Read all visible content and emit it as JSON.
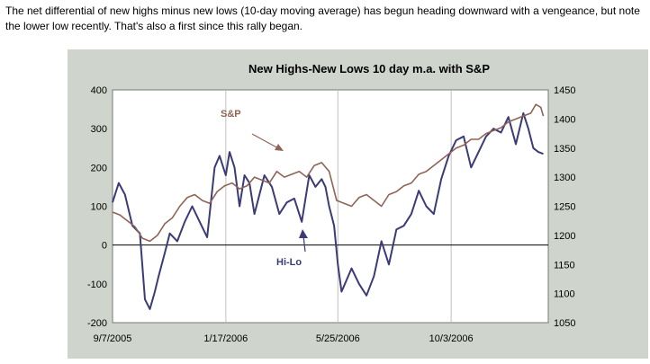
{
  "caption": "The net differential of new highs minus new lows (10-day moving average) has begun heading downward with a vengeance, but note the lower low recently. That's also a first since this rally began.",
  "chart_data": {
    "type": "line",
    "title": "New Highs-New Lows 10 day m.a.  with S&P",
    "x_tick_labels": [
      "9/7/2005",
      "1/17/2006",
      "5/25/2006",
      "10/3/2006"
    ],
    "x_tick_index": [
      0,
      91,
      181,
      272
    ],
    "x_range": [
      0,
      350
    ],
    "y_left": {
      "range": [
        -200,
        400
      ],
      "ticks": [
        -200,
        -100,
        0,
        100,
        200,
        300,
        400
      ]
    },
    "y_right": {
      "range": [
        1050,
        1450
      ],
      "ticks": [
        1050,
        1100,
        1150,
        1200,
        1250,
        1300,
        1350,
        1400,
        1450
      ]
    },
    "annotations": [
      {
        "text": "S&P",
        "series": "S&P"
      },
      {
        "text": "Hi-Lo",
        "series": "Hi-Lo"
      }
    ],
    "series": [
      {
        "name": "Hi-Lo",
        "axis": "left",
        "color": "#3b3b78",
        "x": [
          0,
          5,
          10,
          16,
          22,
          26,
          30,
          34,
          37,
          42,
          46,
          52,
          58,
          64,
          70,
          76,
          82,
          86,
          91,
          94,
          98,
          102,
          106,
          110,
          114,
          118,
          122,
          128,
          134,
          140,
          146,
          152,
          158,
          163,
          168,
          171,
          174,
          178,
          181,
          184,
          188,
          192,
          198,
          204,
          210,
          216,
          222,
          228,
          234,
          240,
          246,
          252,
          258,
          264,
          270,
          276,
          282,
          288,
          294,
          300,
          306,
          312,
          318,
          324,
          330,
          334,
          338,
          342,
          346
        ],
        "values": [
          110,
          160,
          130,
          50,
          30,
          -140,
          -165,
          -120,
          -80,
          -20,
          30,
          10,
          60,
          100,
          60,
          20,
          200,
          230,
          180,
          240,
          200,
          100,
          180,
          160,
          80,
          130,
          180,
          150,
          80,
          110,
          120,
          60,
          180,
          150,
          170,
          150,
          100,
          50,
          -50,
          -120,
          -90,
          -60,
          -100,
          -130,
          -80,
          10,
          -50,
          40,
          50,
          80,
          140,
          100,
          80,
          170,
          230,
          270,
          280,
          200,
          240,
          280,
          300,
          290,
          330,
          260,
          340,
          300,
          250,
          240,
          235
        ]
      },
      {
        "name": "S&P",
        "axis": "right",
        "color": "#8f6456",
        "x": [
          0,
          6,
          12,
          18,
          24,
          30,
          36,
          42,
          48,
          54,
          60,
          66,
          72,
          78,
          84,
          90,
          96,
          102,
          108,
          114,
          120,
          126,
          132,
          138,
          144,
          150,
          156,
          162,
          168,
          174,
          180,
          186,
          192,
          198,
          204,
          210,
          216,
          222,
          228,
          234,
          240,
          246,
          252,
          258,
          264,
          270,
          276,
          282,
          288,
          294,
          300,
          306,
          312,
          318,
          324,
          330,
          336,
          340,
          344,
          346
        ],
        "values": [
          1240,
          1235,
          1225,
          1215,
          1195,
          1190,
          1200,
          1220,
          1230,
          1250,
          1265,
          1270,
          1260,
          1255,
          1275,
          1285,
          1290,
          1280,
          1285,
          1300,
          1295,
          1290,
          1310,
          1300,
          1305,
          1310,
          1300,
          1320,
          1325,
          1310,
          1260,
          1255,
          1250,
          1265,
          1270,
          1260,
          1250,
          1270,
          1275,
          1285,
          1290,
          1305,
          1310,
          1320,
          1330,
          1340,
          1350,
          1355,
          1365,
          1365,
          1375,
          1380,
          1385,
          1395,
          1400,
          1405,
          1410,
          1425,
          1420,
          1405
        ]
      }
    ]
  }
}
